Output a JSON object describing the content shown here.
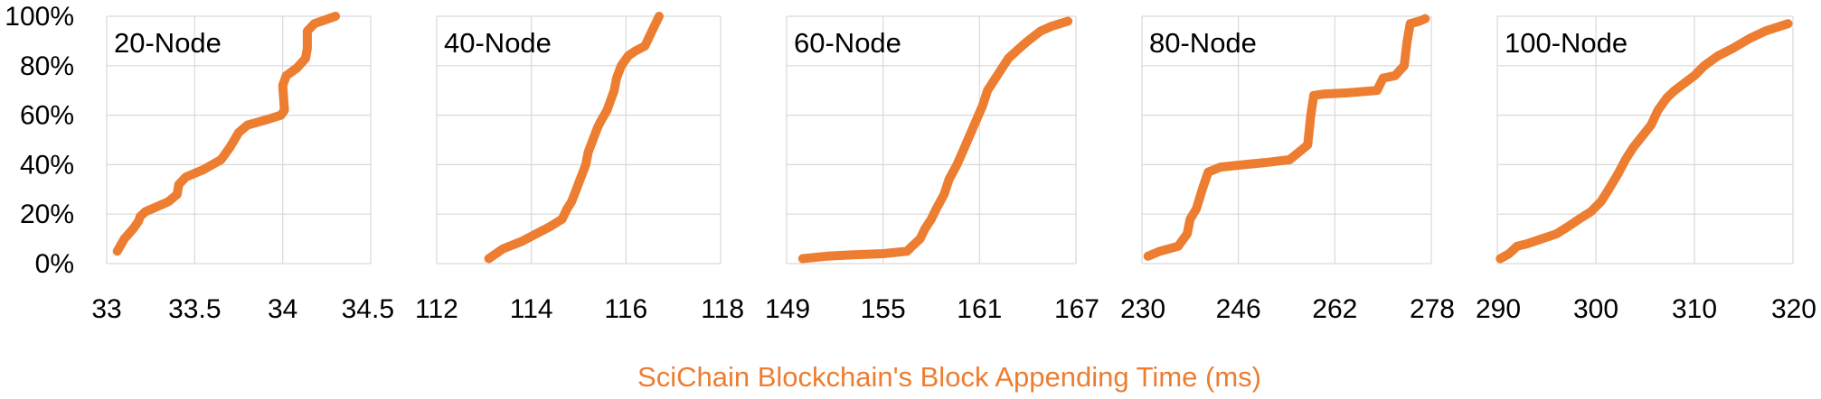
{
  "colors": {
    "series": "#ED7D31",
    "grid": "#D9D9D9",
    "xlabel": "#ED7D31"
  },
  "chart_data": {
    "type": "line",
    "xlabel": "SciChain Blockchain's Block Appending Time (ms)",
    "ylabel": "",
    "yticks": [
      "0%",
      "20%",
      "40%",
      "60%",
      "80%",
      "100%"
    ],
    "ylim": [
      0,
      100
    ],
    "grid": true,
    "legend": "none",
    "panels": [
      {
        "title": "20-Node",
        "xlim": [
          33,
          34.5
        ],
        "xticks": [
          33,
          33.5,
          34,
          34.5
        ],
        "xtick_labels": [
          "33",
          "33.5",
          "34",
          "34.5"
        ],
        "x": [
          33.06,
          33.1,
          33.15,
          33.18,
          33.19,
          33.22,
          33.35,
          33.4,
          33.41,
          33.45,
          33.55,
          33.65,
          33.7,
          33.75,
          33.8,
          33.9,
          33.99,
          34.01,
          34.0,
          34.02,
          34.08,
          34.13,
          34.14,
          34.14,
          34.18,
          34.3
        ],
        "y": [
          5,
          10,
          14,
          17,
          19,
          21,
          25,
          28,
          32,
          35,
          38,
          42,
          47,
          53,
          56,
          58,
          60,
          62,
          72,
          76,
          79,
          83,
          87,
          94,
          97,
          100
        ]
      },
      {
        "title": "40-Node",
        "xlim": [
          112,
          118
        ],
        "xticks": [
          112,
          114,
          116,
          118
        ],
        "xtick_labels": [
          "112",
          "114",
          "116",
          "118"
        ],
        "x": [
          113.1,
          113.4,
          113.8,
          114.1,
          114.4,
          114.65,
          114.75,
          114.85,
          114.95,
          115.05,
          115.15,
          115.2,
          115.3,
          115.4,
          115.45,
          115.6,
          115.75,
          115.8,
          115.9,
          116.05,
          116.2,
          116.4,
          116.5,
          116.6,
          116.7
        ],
        "y": [
          2,
          6,
          9,
          12,
          15,
          18,
          22,
          25,
          30,
          35,
          40,
          45,
          50,
          55,
          57,
          62,
          70,
          75,
          80,
          84,
          86,
          88,
          92,
          96,
          100
        ]
      },
      {
        "title": "60-Node",
        "xlim": [
          149,
          167
        ],
        "xticks": [
          149,
          155,
          161,
          167
        ],
        "xtick_labels": [
          "149",
          "155",
          "161",
          "167"
        ],
        "x": [
          150,
          151.5,
          153,
          155,
          156.5,
          156.8,
          157.3,
          157.6,
          158,
          158.3,
          158.8,
          159.1,
          159.6,
          160,
          160.4,
          160.8,
          161.2,
          161.5,
          161.9,
          162.3,
          162.8,
          163.3,
          164,
          164.8,
          165.5,
          166.5
        ],
        "y": [
          2,
          3,
          3.5,
          4,
          5,
          7,
          10,
          14,
          18,
          22,
          28,
          34,
          40,
          46,
          52,
          58,
          64,
          70,
          74,
          78,
          83,
          86,
          90,
          94,
          96,
          98
        ]
      },
      {
        "title": "80-Node",
        "xlim": [
          230,
          278
        ],
        "xticks": [
          230,
          246,
          262,
          278
        ],
        "xtick_labels": [
          "230",
          "246",
          "262",
          "278"
        ],
        "x": [
          231,
          233,
          236,
          237.5,
          238,
          239,
          240,
          241,
          243,
          247,
          251,
          254.5,
          256,
          257.5,
          258,
          258.5,
          260,
          264,
          269,
          270,
          272,
          273.5,
          274,
          274.5,
          276,
          277
        ],
        "y": [
          3,
          5,
          7,
          12,
          18,
          22,
          30,
          37,
          39,
          40,
          41,
          42,
          45,
          48,
          60,
          68,
          68.5,
          69,
          70,
          75,
          76,
          80,
          90,
          97,
          98,
          99
        ]
      },
      {
        "title": "100-Node",
        "xlim": [
          290,
          320
        ],
        "xticks": [
          290,
          300,
          310,
          320
        ],
        "xtick_labels": [
          "290",
          "300",
          "310",
          "320"
        ],
        "x": [
          290.3,
          291.2,
          292,
          293,
          294.5,
          296,
          297.2,
          298.3,
          299.5,
          300.5,
          301.3,
          302.2,
          303,
          303.8,
          304.8,
          305.6,
          306.3,
          307.2,
          308,
          309,
          310,
          311,
          312.4,
          313.9,
          315.6,
          317.2,
          319.5
        ],
        "y": [
          2,
          4,
          7,
          8,
          10,
          12,
          15,
          18,
          21,
          25,
          30,
          36,
          42,
          47,
          52,
          56,
          62,
          67,
          70,
          73,
          76,
          80,
          84,
          87,
          91,
          94,
          97
        ]
      }
    ]
  }
}
